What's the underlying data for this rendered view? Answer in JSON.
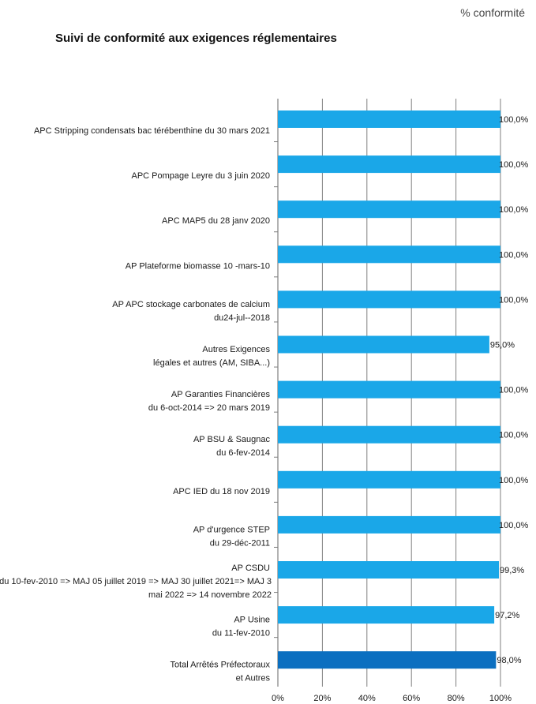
{
  "header": {
    "corner_label": "% conformité"
  },
  "chart_data": {
    "type": "bar",
    "orientation": "horizontal",
    "title": "Suivi de conformité aux exigences réglementaires",
    "xlim": [
      0,
      100
    ],
    "x_ticks": [
      "0%",
      "20%",
      "40%",
      "60%",
      "80%",
      "100%"
    ],
    "grid": "vertical",
    "colors": {
      "bar": "#1aa7e8",
      "total_bar": "#0b6fc0",
      "grid": "#7f7f7f",
      "axis": "#7f7f7f"
    },
    "categories": [
      {
        "lines": [
          "APC Stripping condensats bac térébenthine du 30 mars 2021"
        ],
        "value": 100.0,
        "value_label": "100,0%"
      },
      {
        "lines": [
          "APC Pompage Leyre du 3 juin 2020"
        ],
        "value": 100.0,
        "value_label": "100,0%"
      },
      {
        "lines": [
          "APC MAP5 du 28 janv 2020"
        ],
        "value": 100.0,
        "value_label": "100,0%"
      },
      {
        "lines": [
          "AP  Plateforme biomasse 10 -mars-10"
        ],
        "value": 100.0,
        "value_label": "100,0%"
      },
      {
        "lines": [
          "AP  APC stockage carbonates de calcium",
          "du24-jul--2018"
        ],
        "value": 100.0,
        "value_label": "100,0%"
      },
      {
        "lines": [
          "Autres Exigences",
          "légales et autres (AM, SIBA...)"
        ],
        "value": 95.0,
        "value_label": "95,0%"
      },
      {
        "lines": [
          "AP  Garanties Financières",
          "du 6-oct-2014 => 20 mars 2019"
        ],
        "value": 100.0,
        "value_label": "100,0%"
      },
      {
        "lines": [
          "AP BSU & Saugnac",
          "du 6-fev-2014"
        ],
        "value": 100.0,
        "value_label": "100,0%"
      },
      {
        "lines": [
          "APC IED du 18 nov 2019"
        ],
        "value": 100.0,
        "value_label": "100,0%"
      },
      {
        "lines": [
          "AP d'urgence STEP",
          "du 29-déc-2011"
        ],
        "value": 100.0,
        "value_label": "100,0%"
      },
      {
        "lines": [
          "AP CSDU",
          "du 10-fev-2010  => MAJ  05 juillet 2019 => MAJ 30 juillet 2021=> MAJ 3",
          "mai 2022 => 14 novembre 2022"
        ],
        "value": 99.3,
        "value_label": "99,3%"
      },
      {
        "lines": [
          "AP  Usine",
          "du 11-fev-2010"
        ],
        "value": 97.2,
        "value_label": "97,2%"
      },
      {
        "lines": [
          "Total Arrêtés Préfectoraux",
          "et Autres"
        ],
        "value": 98.0,
        "value_label": "98,0%",
        "highlight": true
      }
    ]
  }
}
